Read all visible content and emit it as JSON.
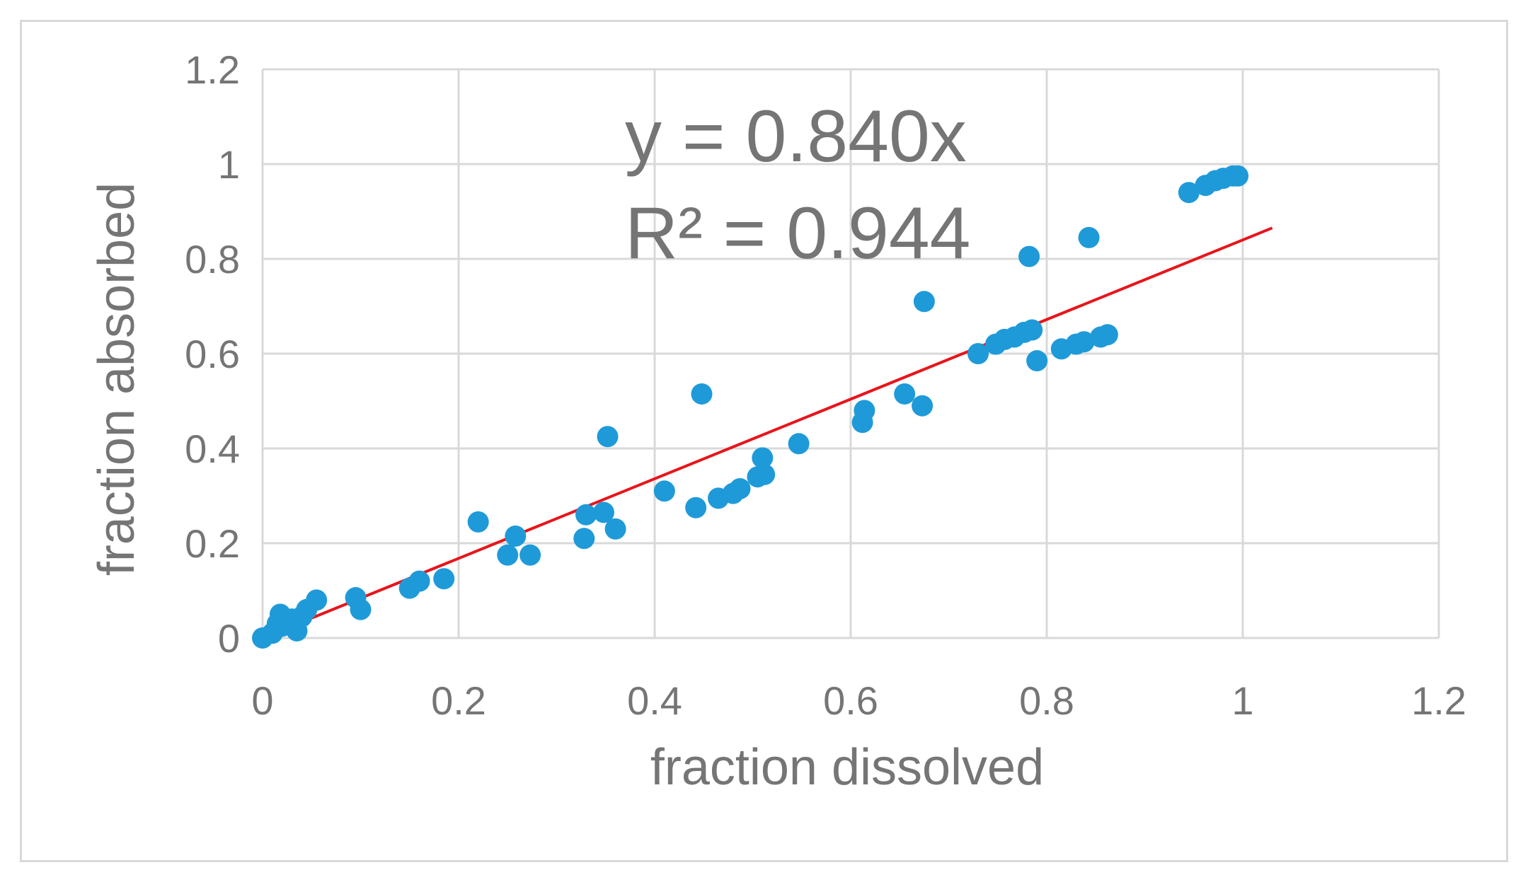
{
  "chart_data": {
    "type": "scatter",
    "title": "",
    "xlabel": "fraction dissolved",
    "ylabel": "fraction absorbed",
    "xlim": [
      0,
      1.2
    ],
    "ylim": [
      0,
      1.2
    ],
    "xticks": [
      "0",
      "0.2",
      "0.4",
      "0.6",
      "0.8",
      "1",
      "1.2"
    ],
    "yticks": [
      "0",
      "0.2",
      "0.4",
      "0.6",
      "0.8",
      "1",
      "1.2"
    ],
    "grid": true,
    "legend": "none",
    "marker_color": "#1f9ad9",
    "trendline_color": "#e8141b",
    "grid_color": "#d9d9d9",
    "text_color": "#757575",
    "annotations": [
      "y = 0.840x",
      "R² = 0.944"
    ],
    "trendline": {
      "slope": 0.84,
      "x_range": [
        0,
        1.03
      ]
    },
    "points": [
      [
        0.0,
        0.0
      ],
      [
        0.01,
        0.01
      ],
      [
        0.015,
        0.03
      ],
      [
        0.018,
        0.05
      ],
      [
        0.02,
        0.025
      ],
      [
        0.03,
        0.04
      ],
      [
        0.035,
        0.015
      ],
      [
        0.04,
        0.045
      ],
      [
        0.045,
        0.06
      ],
      [
        0.055,
        0.08
      ],
      [
        0.095,
        0.085
      ],
      [
        0.1,
        0.06
      ],
      [
        0.15,
        0.105
      ],
      [
        0.16,
        0.12
      ],
      [
        0.185,
        0.125
      ],
      [
        0.22,
        0.245
      ],
      [
        0.25,
        0.175
      ],
      [
        0.258,
        0.215
      ],
      [
        0.273,
        0.175
      ],
      [
        0.328,
        0.21
      ],
      [
        0.33,
        0.26
      ],
      [
        0.348,
        0.265
      ],
      [
        0.352,
        0.425
      ],
      [
        0.36,
        0.23
      ],
      [
        0.41,
        0.31
      ],
      [
        0.442,
        0.275
      ],
      [
        0.448,
        0.515
      ],
      [
        0.465,
        0.295
      ],
      [
        0.48,
        0.305
      ],
      [
        0.487,
        0.315
      ],
      [
        0.505,
        0.34
      ],
      [
        0.51,
        0.38
      ],
      [
        0.512,
        0.345
      ],
      [
        0.547,
        0.41
      ],
      [
        0.612,
        0.455
      ],
      [
        0.614,
        0.48
      ],
      [
        0.655,
        0.515
      ],
      [
        0.673,
        0.49
      ],
      [
        0.675,
        0.71
      ],
      [
        0.73,
        0.6
      ],
      [
        0.748,
        0.62
      ],
      [
        0.757,
        0.63
      ],
      [
        0.767,
        0.635
      ],
      [
        0.777,
        0.645
      ],
      [
        0.782,
        0.805
      ],
      [
        0.785,
        0.65
      ],
      [
        0.79,
        0.585
      ],
      [
        0.815,
        0.61
      ],
      [
        0.83,
        0.62
      ],
      [
        0.838,
        0.625
      ],
      [
        0.843,
        0.845
      ],
      [
        0.855,
        0.635
      ],
      [
        0.862,
        0.64
      ],
      [
        0.945,
        0.94
      ],
      [
        0.962,
        0.955
      ],
      [
        0.972,
        0.965
      ],
      [
        0.98,
        0.97
      ],
      [
        0.99,
        0.975
      ],
      [
        0.995,
        0.975
      ]
    ]
  }
}
